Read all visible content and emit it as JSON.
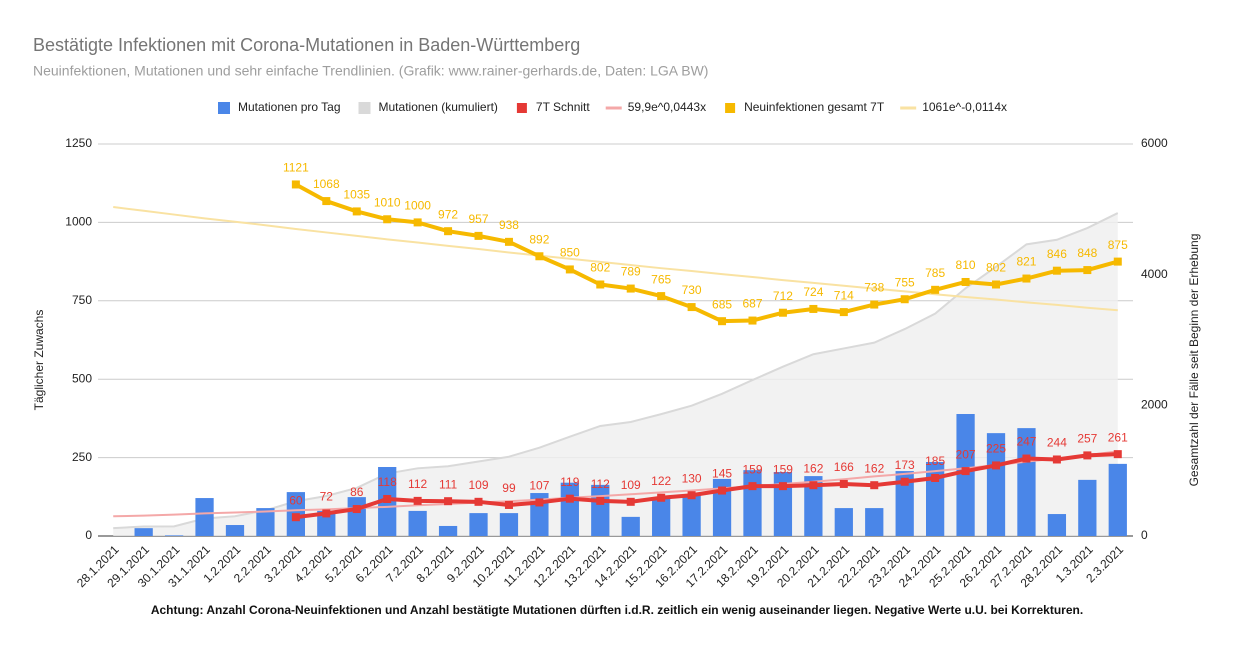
{
  "chart_data": {
    "type": "combo",
    "title": "Bestätigte Infektionen mit Corona-Mutationen in Baden-Württemberg",
    "subtitle": "Neuinfektionen, Mutationen und sehr einfache Trendlinien.  (Grafik: www.rainer-gerhards.de, Daten: LGA BW)",
    "footnote": "Achtung: Anzahl Corona-Neuinfektionen und Anzahl bestätigte Mutationen dürften i.d.R. zeitlich ein wenig auseinander liegen. Negative Werte u.U. bei Korrekturen.",
    "y_label": "Täglicher Zuwachs",
    "y2_label": "Gesamtzahl der Fälle seit Beginn der Erhebung",
    "categories": [
      "28.1.2021",
      "29.1.2021",
      "30.1.2021",
      "31.1.2021",
      "1.2.2021",
      "2.2.2021",
      "3.2.2021",
      "4.2.2021",
      "5.2.2021",
      "6.2.2021",
      "7.2.2021",
      "8.2.2021",
      "9.2.2021",
      "10.2.2021",
      "11.2.2021",
      "12.2.2021",
      "13.2.2021",
      "14.2.2021",
      "15.2.2021",
      "16.2.2021",
      "17.2.2021",
      "18.2.2021",
      "19.2.2021",
      "20.2.2021",
      "21.2.2021",
      "22.2.2021",
      "23.2.2021",
      "24.2.2021",
      "25.2.2021",
      "26.2.2021",
      "27.2.2021",
      "28.2.2021",
      "1.3.2021",
      "2.3.2021"
    ],
    "ylim": [
      0,
      1250
    ],
    "yticks": [
      0,
      250,
      500,
      750,
      1000,
      1250
    ],
    "y2lim": [
      0,
      6000
    ],
    "y2ticks": [
      0,
      2000,
      4000,
      6000
    ],
    "grid": true,
    "series": [
      {
        "name": "Mutationen pro Tag",
        "type": "bar",
        "color": "#4a86e8",
        "data_labels": false,
        "values": [
          0,
          25,
          2,
          121,
          35,
          89,
          140,
          80,
          124,
          220,
          80,
          32,
          73,
          73,
          137,
          170,
          163,
          61,
          120,
          130,
          182,
          210,
          204,
          191,
          89,
          89,
          207,
          236,
          389,
          328,
          344,
          70,
          179,
          230
        ]
      },
      {
        "name": "Mutationen (kumuliert)",
        "type": "area",
        "axis": "y2",
        "color": "#d9d9d9",
        "data_labels": false,
        "values": [
          120,
          145,
          147,
          268,
          303,
          392,
          532,
          612,
          736,
          956,
          1036,
          1068,
          1141,
          1214,
          1351,
          1521,
          1684,
          1745,
          1865,
          1995,
          2177,
          2387,
          2591,
          2782,
          2871,
          2960,
          3167,
          3403,
          3792,
          4120,
          4464,
          4534,
          4713,
          4943
        ]
      },
      {
        "name": "7T Schnitt",
        "type": "line",
        "color": "#e53935",
        "data_labels": true,
        "values": [
          null,
          null,
          null,
          null,
          null,
          null,
          60,
          72,
          86,
          118,
          112,
          111,
          109,
          99,
          107,
          119,
          112,
          109,
          122,
          130,
          145,
          159,
          159,
          162,
          166,
          162,
          173,
          185,
          207,
          225,
          247,
          244,
          257,
          261
        ]
      },
      {
        "name": "59,9e^0,0443x",
        "type": "trend",
        "color": "#f4a8a8",
        "data_labels": false,
        "values": [
          63,
          65,
          68,
          72,
          75,
          78,
          82,
          85,
          89,
          93,
          98,
          102,
          107,
          111,
          116,
          122,
          127,
          133,
          139,
          145,
          152,
          159,
          166,
          173,
          181,
          190,
          198,
          207,
          216,
          226,
          237,
          247,
          258,
          270
        ]
      },
      {
        "name": "Neuinfektionen gesamt 7T",
        "type": "line",
        "color": "#f6b900",
        "data_labels": true,
        "values": [
          null,
          null,
          null,
          null,
          null,
          null,
          1121,
          1068,
          1035,
          1010,
          1000,
          972,
          957,
          938,
          892,
          850,
          802,
          789,
          765,
          730,
          685,
          687,
          712,
          724,
          714,
          738,
          755,
          785,
          810,
          802,
          821,
          846,
          848,
          875
        ]
      },
      {
        "name": "1061e^-0,0114x",
        "type": "trend",
        "color": "#f9e2a2",
        "data_labels": false,
        "values": [
          1049,
          1037,
          1025,
          1013,
          1002,
          991,
          979,
          968,
          957,
          946,
          936,
          925,
          915,
          904,
          894,
          884,
          874,
          864,
          854,
          845,
          835,
          826,
          816,
          807,
          798,
          789,
          780,
          771,
          762,
          754,
          745,
          737,
          728,
          720
        ]
      }
    ]
  }
}
